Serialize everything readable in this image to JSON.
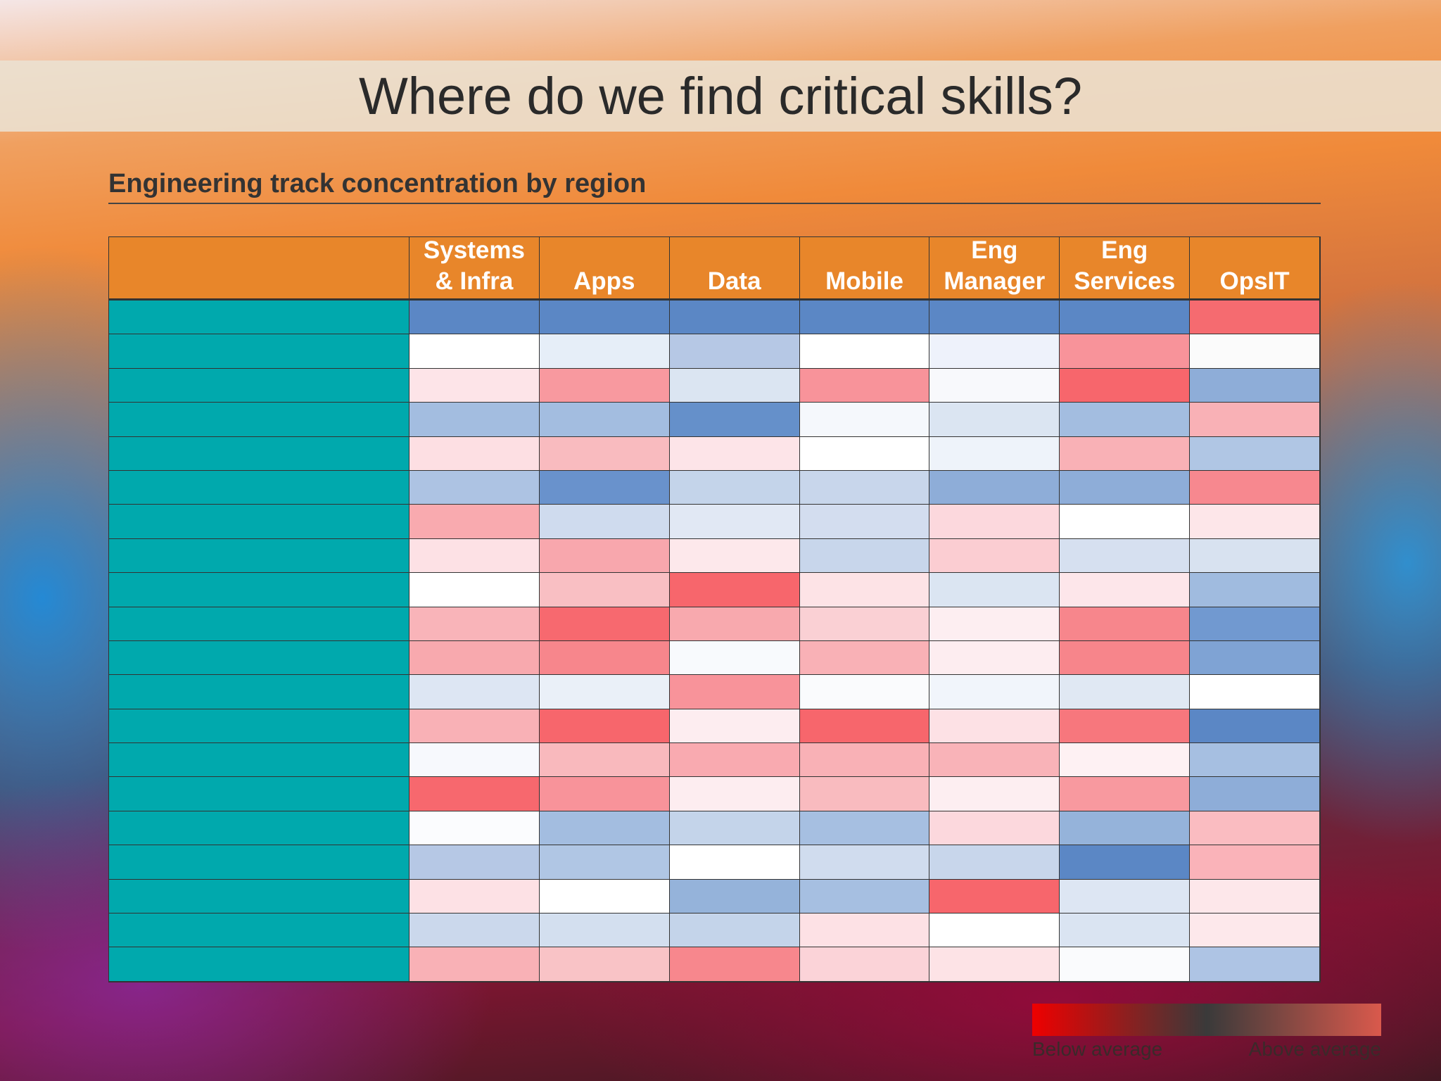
{
  "slide": {
    "title": "Where do we find critical skills?",
    "subtitle": "Engineering track concentration by region",
    "table": {
      "header_color": "#e8862a",
      "label_color": "#00a9ad",
      "columns": [
        "Systems & Infra",
        "Apps",
        "Data",
        "Mobile",
        "Eng Manager",
        "Eng Services",
        "OpsIT"
      ],
      "cell_colors": [
        [
          "#5b87c5",
          "#5b87c5",
          "#5b87c5",
          "#5b87c5",
          "#5b87c5",
          "#5b87c5",
          "#f56b70"
        ],
        [
          "#ffffff",
          "#e6eef8",
          "#b6c8e5",
          "#ffffff",
          "#eef2fb",
          "#f8939a",
          "#fbfbfb"
        ],
        [
          "#fde4e8",
          "#f8999f",
          "#dbe5f2",
          "#f8939a",
          "#f8f9fc",
          "#f7666c",
          "#8eadd8"
        ],
        [
          "#a3bde0",
          "#a3bde0",
          "#6590ca",
          "#f5f8fc",
          "#dbe5f2",
          "#a3bde0",
          "#f9b1b6"
        ],
        [
          "#fddfe3",
          "#f9bbbf",
          "#fde4e8",
          "#ffffff",
          "#eef3fa",
          "#f9b1b6",
          "#b0c6e4"
        ],
        [
          "#adc3e3",
          "#6992cc",
          "#c4d4ea",
          "#c8d6eb",
          "#8eadd8",
          "#8eadd8",
          "#f7888f"
        ],
        [
          "#f9aaaf",
          "#cfdbee",
          "#e1e8f4",
          "#d3ddef",
          "#fcd8dd",
          "#ffffff",
          "#fde6e9"
        ],
        [
          "#fde1e5",
          "#f8a7ad",
          "#fde8eb",
          "#c8d6eb",
          "#fbcdd2",
          "#d6e0f0",
          "#d8e2f0"
        ],
        [
          "#ffffff",
          "#f9bfc3",
          "#f7666c",
          "#fde3e6",
          "#dbe5f2",
          "#fde6ea",
          "#a0bbdf"
        ],
        [
          "#f9b4b9",
          "#f7696f",
          "#f8a9ae",
          "#fad0d4",
          "#fdeef1",
          "#f7868c",
          "#7199d0"
        ],
        [
          "#f8a9ae",
          "#f7868c",
          "#f8fafd",
          "#f9b1b6",
          "#fdedf0",
          "#f7858b",
          "#7fa3d4"
        ],
        [
          "#dde6f3",
          "#eaf0f8",
          "#f8939a",
          "#fafbfd",
          "#f1f5fb",
          "#e0e8f3",
          "#ffffff"
        ],
        [
          "#f9b1b6",
          "#f7666c",
          "#fdedf0",
          "#f7666c",
          "#fde1e5",
          "#f7777d",
          "#5b87c5"
        ],
        [
          "#f7f9fd",
          "#f9b9bd",
          "#f9aab0",
          "#f9b1b6",
          "#f9b3b8",
          "#fef1f3",
          "#a6bfe1"
        ],
        [
          "#f7686e",
          "#f8939a",
          "#fdedf0",
          "#f9bbbf",
          "#fdeef1",
          "#f8999f",
          "#8eadd8"
        ],
        [
          "#fbfcfe",
          "#a3bde0",
          "#c4d4ea",
          "#a6bfe1",
          "#fcd8dd",
          "#95b3da",
          "#fabcc1"
        ],
        [
          "#b6c8e5",
          "#b0c6e4",
          "#ffffff",
          "#d0dcee",
          "#c8d6eb",
          "#5b87c5",
          "#fab3b9"
        ],
        [
          "#fde1e5",
          "#ffffff",
          "#95b3da",
          "#a6bfe1",
          "#f7666c",
          "#dde6f3",
          "#fde7ea"
        ],
        [
          "#cbd8ec",
          "#d3dfef",
          "#c4d4ea",
          "#fde1e5",
          "#ffffff",
          "#dae4f2",
          "#fde8eb"
        ],
        [
          "#f9b1b6",
          "#f9c3c6",
          "#f7878d",
          "#fbd3d8",
          "#fde3e6",
          "#fafbfd",
          "#aec4e4"
        ]
      ]
    },
    "legend": {
      "colors": [
        "#ee0000",
        "#3a3a3a",
        "#d9594c"
      ],
      "low": "Below average",
      "high": "Above average"
    }
  }
}
